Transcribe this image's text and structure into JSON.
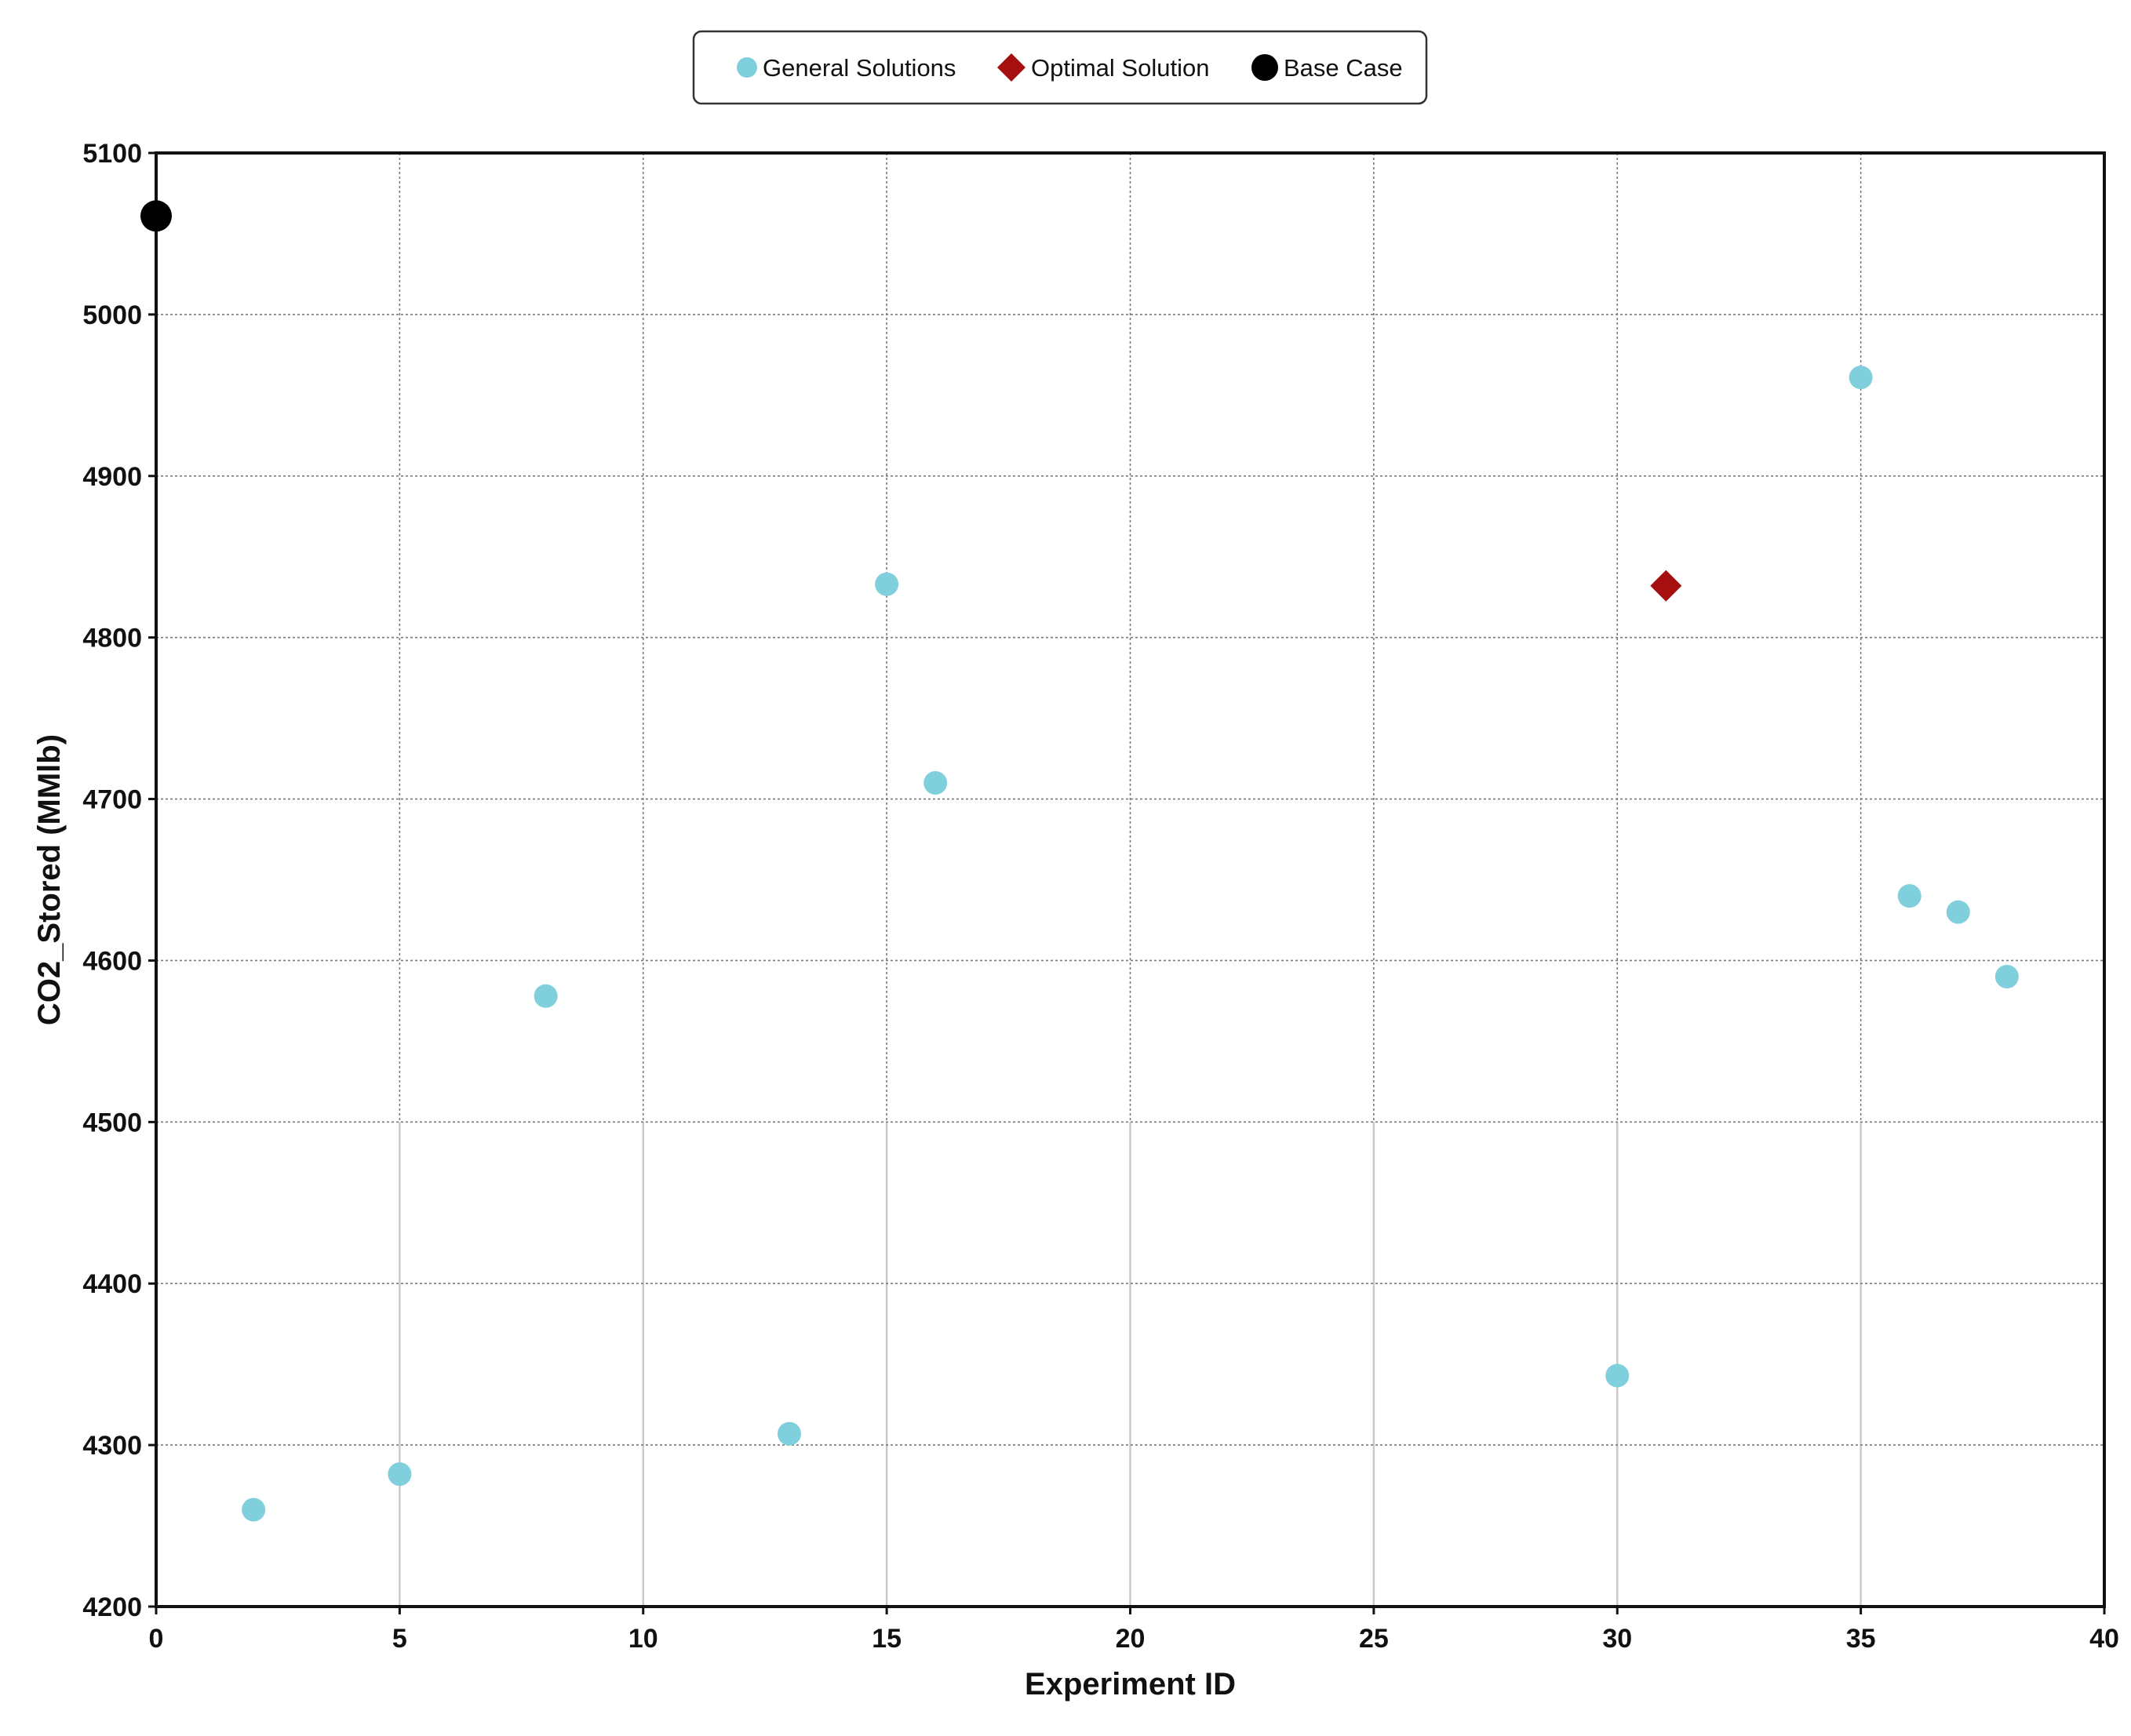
{
  "chart_data": {
    "type": "scatter",
    "title": "",
    "xlabel": "Experiment ID",
    "ylabel": "CO2_Stored (MMlb)",
    "xlim": [
      0,
      40
    ],
    "ylim": [
      4200,
      5100
    ],
    "x_ticks": [
      "0",
      "5",
      "10",
      "15",
      "20",
      "25",
      "30",
      "35",
      "40"
    ],
    "y_ticks": [
      "4200",
      "4300",
      "4400",
      "4500",
      "4600",
      "4700",
      "4800",
      "4900",
      "5000",
      "5100"
    ],
    "grid": true,
    "legend_position": "top-center",
    "series": [
      {
        "name": "General Solutions",
        "marker": "circle",
        "color": "#7fcfdc",
        "points": [
          {
            "x": 2,
            "y": 4260
          },
          {
            "x": 5,
            "y": 4282
          },
          {
            "x": 8,
            "y": 4578
          },
          {
            "x": 13,
            "y": 4307
          },
          {
            "x": 15,
            "y": 4833
          },
          {
            "x": 16,
            "y": 4710
          },
          {
            "x": 30,
            "y": 4343
          },
          {
            "x": 35,
            "y": 4961
          },
          {
            "x": 36,
            "y": 4640
          },
          {
            "x": 37,
            "y": 4630
          },
          {
            "x": 38,
            "y": 4590
          }
        ]
      },
      {
        "name": "Optimal Solution",
        "marker": "diamond",
        "color": "#a50f0f",
        "points": [
          {
            "x": 31,
            "y": 4832
          }
        ]
      },
      {
        "name": "Base Case",
        "marker": "circle",
        "color": "#000000",
        "points": [
          {
            "x": 0,
            "y": 5061
          }
        ]
      }
    ]
  }
}
